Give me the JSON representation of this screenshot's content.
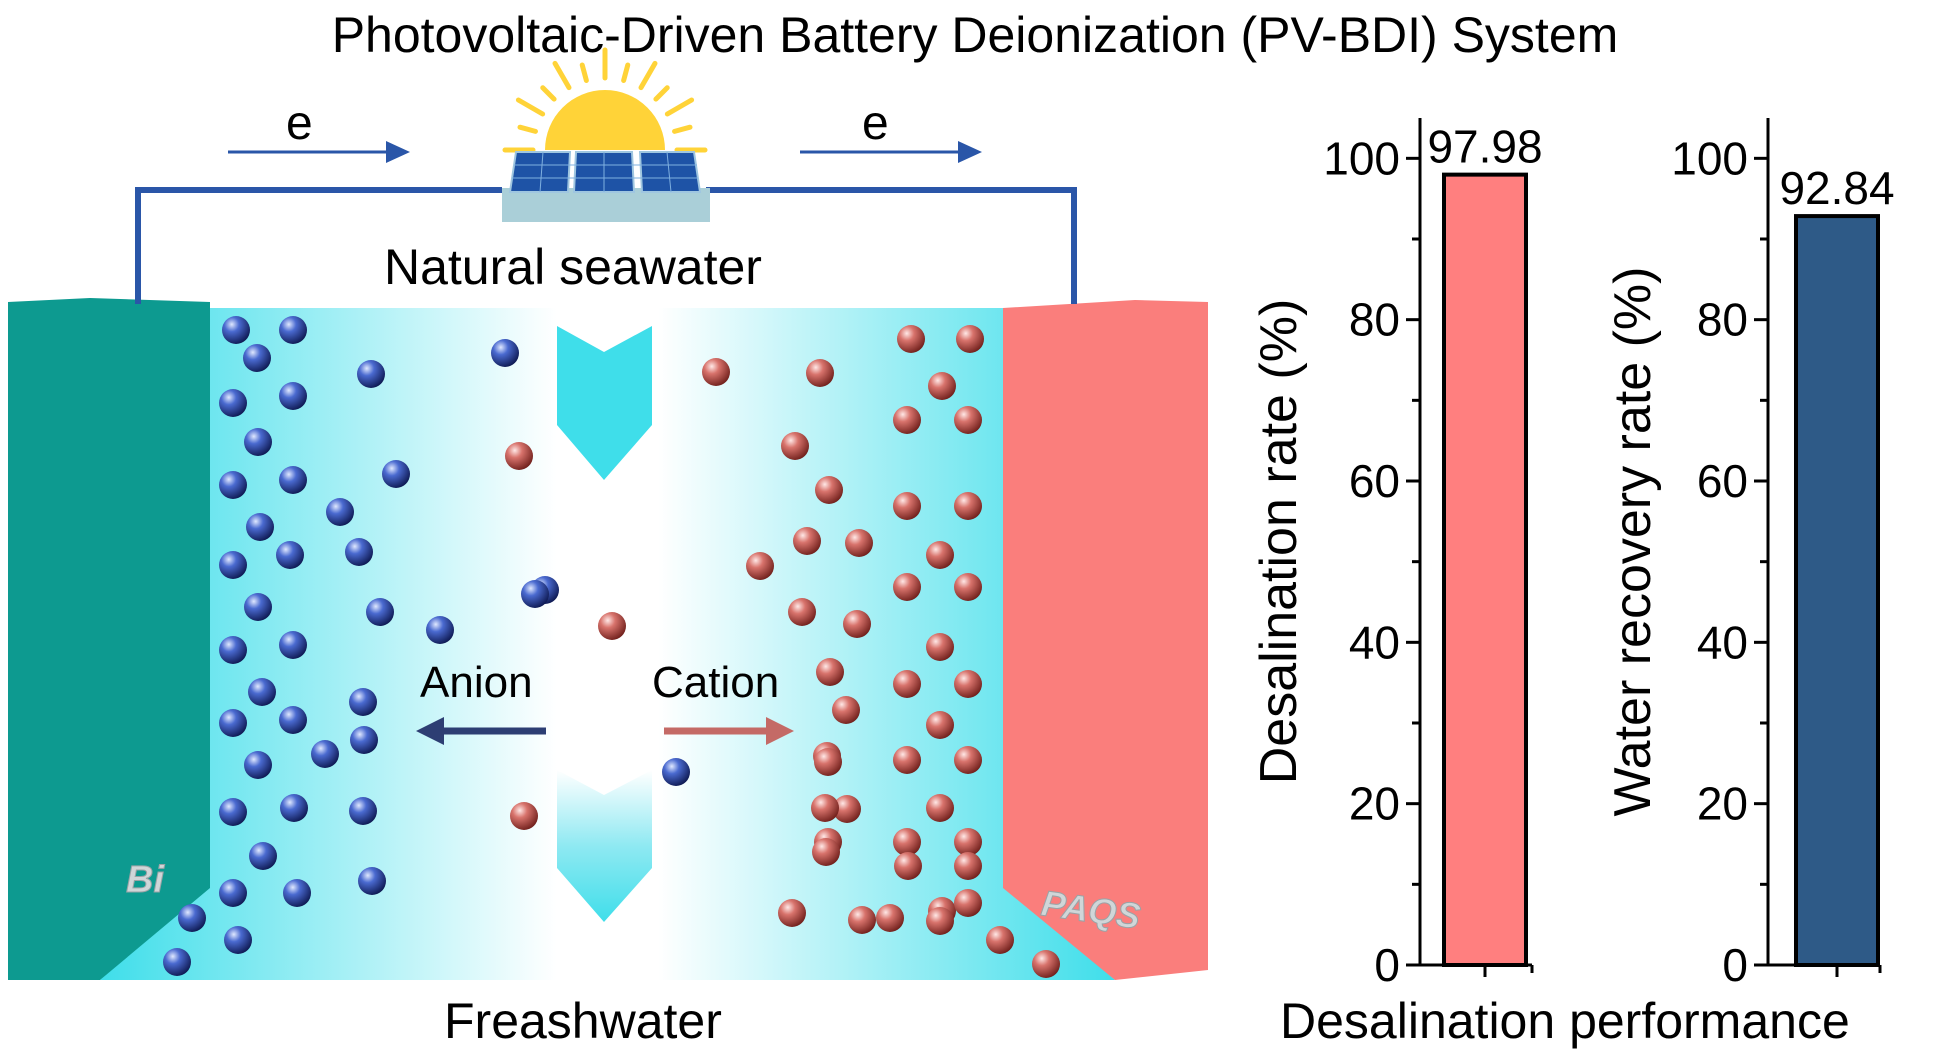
{
  "title": "Photovoltaic-Driven Battery Deionization (PV-BDI) System",
  "diagram": {
    "electron_label": "e",
    "inlet_label": "Natural seawater",
    "outlet_label": "Freashwater",
    "anion_label": "Anion",
    "cation_label": "Cation",
    "left_electrode": "Bi",
    "right_electrode": "PAQS",
    "colors": {
      "bi_electrode": "#0d9a90",
      "paqs_electrode": "#fa7e7c",
      "water_gradient": "#3fdeea",
      "wire": "#2a56a8",
      "anion_particle": "#1a2d7a",
      "cation_particle": "#a8403a",
      "anion_arrow": "#2d3e73",
      "cation_arrow": "#c46a66",
      "sun": "#ffd338",
      "panel": "#1e53a6"
    }
  },
  "x_axis_title": "Desalination performance",
  "chart_data": [
    {
      "type": "bar",
      "categories": [
        ""
      ],
      "values": [
        97.98
      ],
      "data_labels": [
        "97.98"
      ],
      "ylabel": "Desalination rate (%)",
      "ylim": [
        0,
        105
      ],
      "yticks": [
        0,
        20,
        40,
        60,
        80,
        100
      ],
      "color": "#ff7f7f",
      "grid": false
    },
    {
      "type": "bar",
      "categories": [
        ""
      ],
      "values": [
        92.84
      ],
      "data_labels": [
        "92.84"
      ],
      "ylabel": "Water recovery rate (%)",
      "ylim": [
        0,
        105
      ],
      "yticks": [
        0,
        20,
        40,
        60,
        80,
        100
      ],
      "color": "#2e5a87",
      "grid": false
    }
  ]
}
